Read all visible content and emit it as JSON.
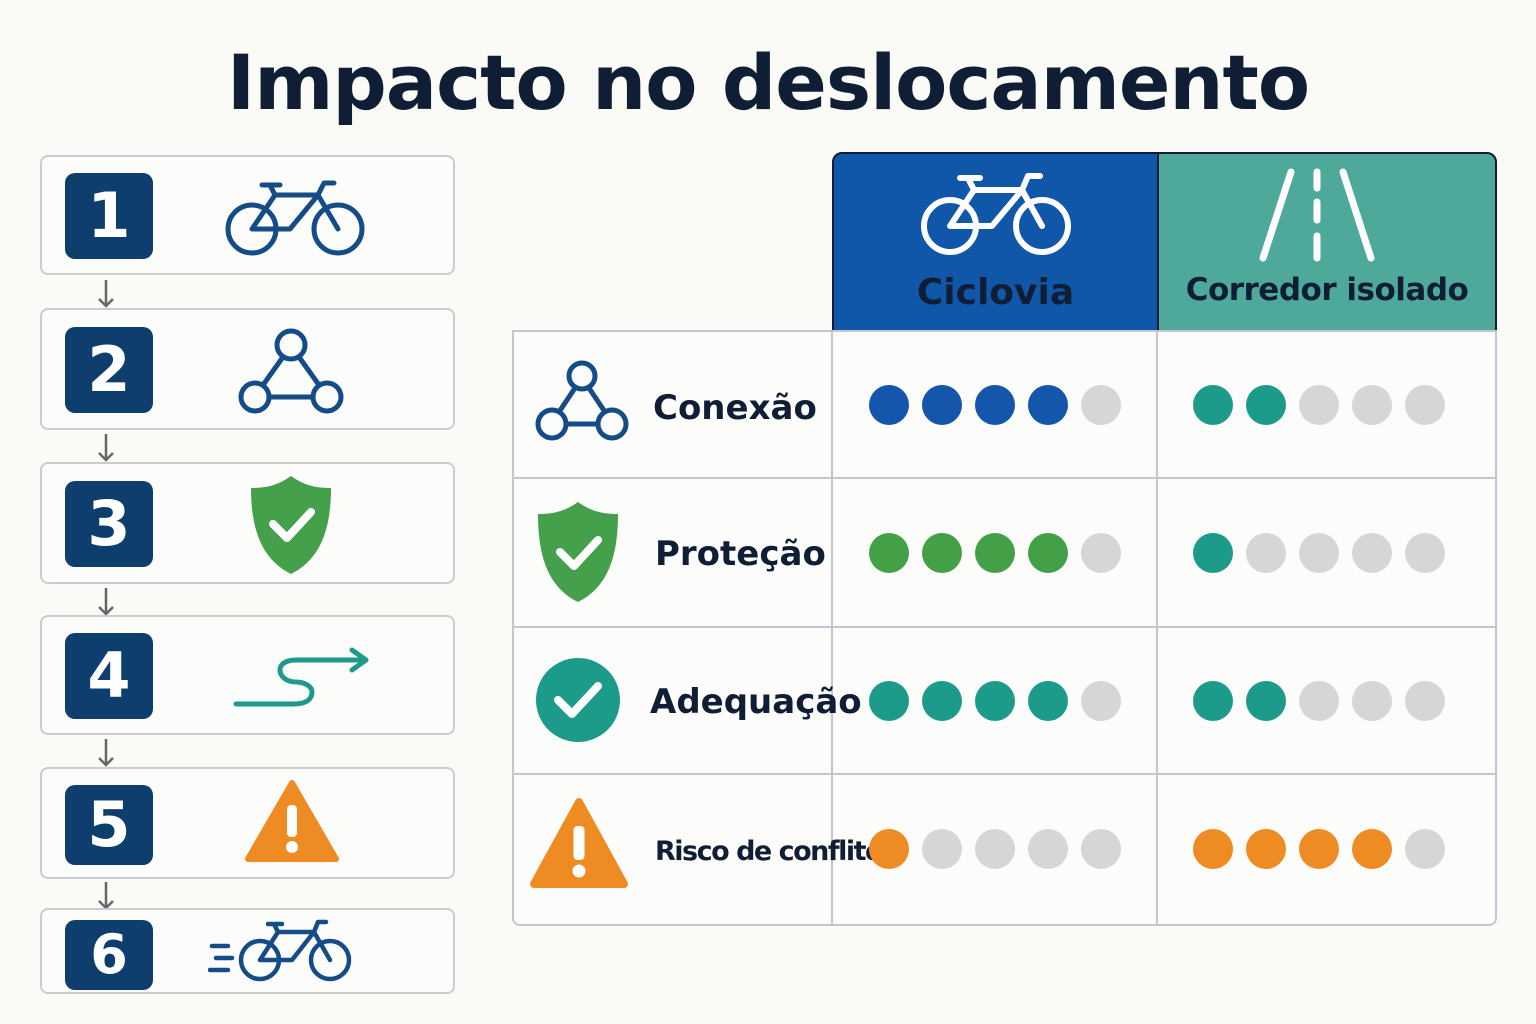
{
  "title": "Impacto no deslocamento",
  "steps": [
    {
      "number": "1",
      "icon": "bicycle-icon"
    },
    {
      "number": "2",
      "icon": "network-icon"
    },
    {
      "number": "3",
      "icon": "shield-check-icon"
    },
    {
      "number": "4",
      "icon": "route-arrow-icon"
    },
    {
      "number": "5",
      "icon": "warning-icon"
    },
    {
      "number": "6",
      "icon": "fast-bicycle-icon"
    }
  ],
  "columns": [
    {
      "label": "Ciclovia",
      "icon": "bicycle-icon",
      "color": "#1057aa"
    },
    {
      "label": "Corredor isolado",
      "icon": "road-icon",
      "color": "#4ea99a"
    }
  ],
  "rows": [
    {
      "label": "Conexão",
      "icon": "network-icon",
      "ciclovia": 4,
      "corredor": 2,
      "color_ciclovia": "#1456ab",
      "color_corredor": "#1c9a8a"
    },
    {
      "label": "Proteção",
      "icon": "shield-check-icon",
      "ciclovia": 4,
      "corredor": 1,
      "color_ciclovia": "#43a047",
      "color_corredor": "#1c9a8a"
    },
    {
      "label": "Adequação",
      "icon": "check-circle-icon",
      "ciclovia": 4,
      "corredor": 2,
      "color_ciclovia": "#1c9a8a",
      "color_corredor": "#1c9a8a"
    },
    {
      "label": "Risco de conflito",
      "icon": "warning-icon",
      "ciclovia": 1,
      "corredor": 4,
      "color_ciclovia": "#ee8b22",
      "color_corredor": "#ee8b22"
    }
  ],
  "scale_max": 5,
  "empty_color": "#d6d6d6"
}
